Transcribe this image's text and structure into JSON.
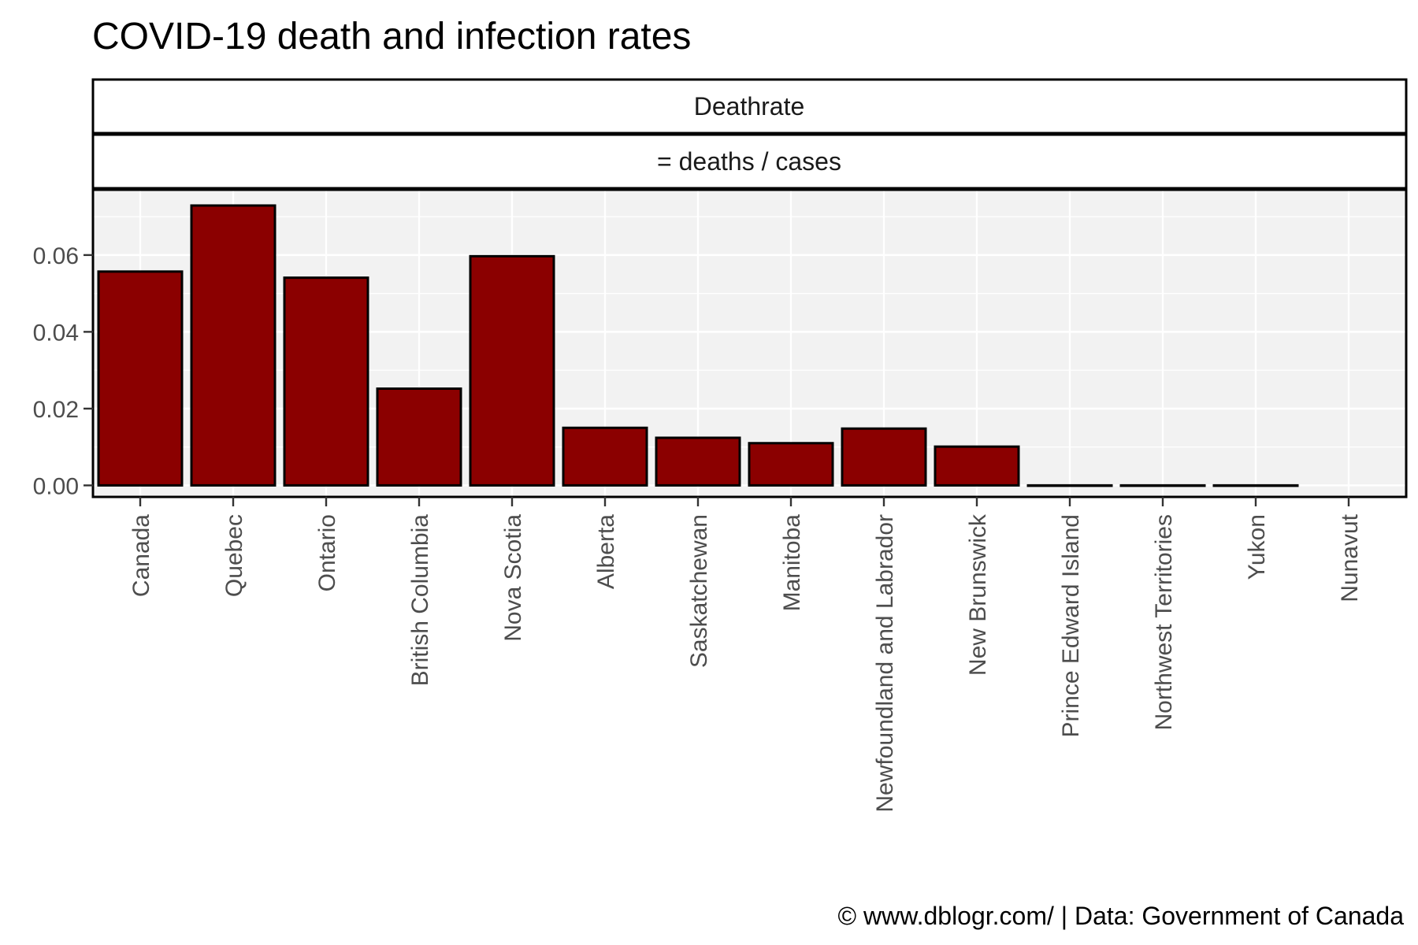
{
  "chart_data": {
    "type": "bar",
    "title": "COVID-19 death and infection rates",
    "facet_strips": [
      "Deathrate",
      "= deaths / cases"
    ],
    "categories": [
      "Canada",
      "Quebec",
      "Ontario",
      "British Columbia",
      "Nova Scotia",
      "Alberta",
      "Saskatchewan",
      "Manitoba",
      "Newfoundland and Labrador",
      "New Brunswick",
      "Prince Edward Island",
      "Northwest Territories",
      "Yukon",
      "Nunavut"
    ],
    "values": [
      0.0557,
      0.0729,
      0.0541,
      0.0252,
      0.0597,
      0.015,
      0.0124,
      0.011,
      0.0148,
      0.0101,
      0.0,
      0.0,
      0.0,
      null
    ],
    "yticks": [
      0.0,
      0.02,
      0.04,
      0.06
    ],
    "ytick_labels": [
      "0.00",
      "0.02",
      "0.04",
      "0.06"
    ],
    "ylim": [
      -0.003,
      0.077
    ],
    "xlabel": "",
    "ylabel": "",
    "grid": true,
    "bar_color": "#8b0000",
    "bar_outline": "#000000",
    "panel_background": "#f2f2f2",
    "caption": "© www.dblogr.com/  |  Data: Government of Canada"
  }
}
